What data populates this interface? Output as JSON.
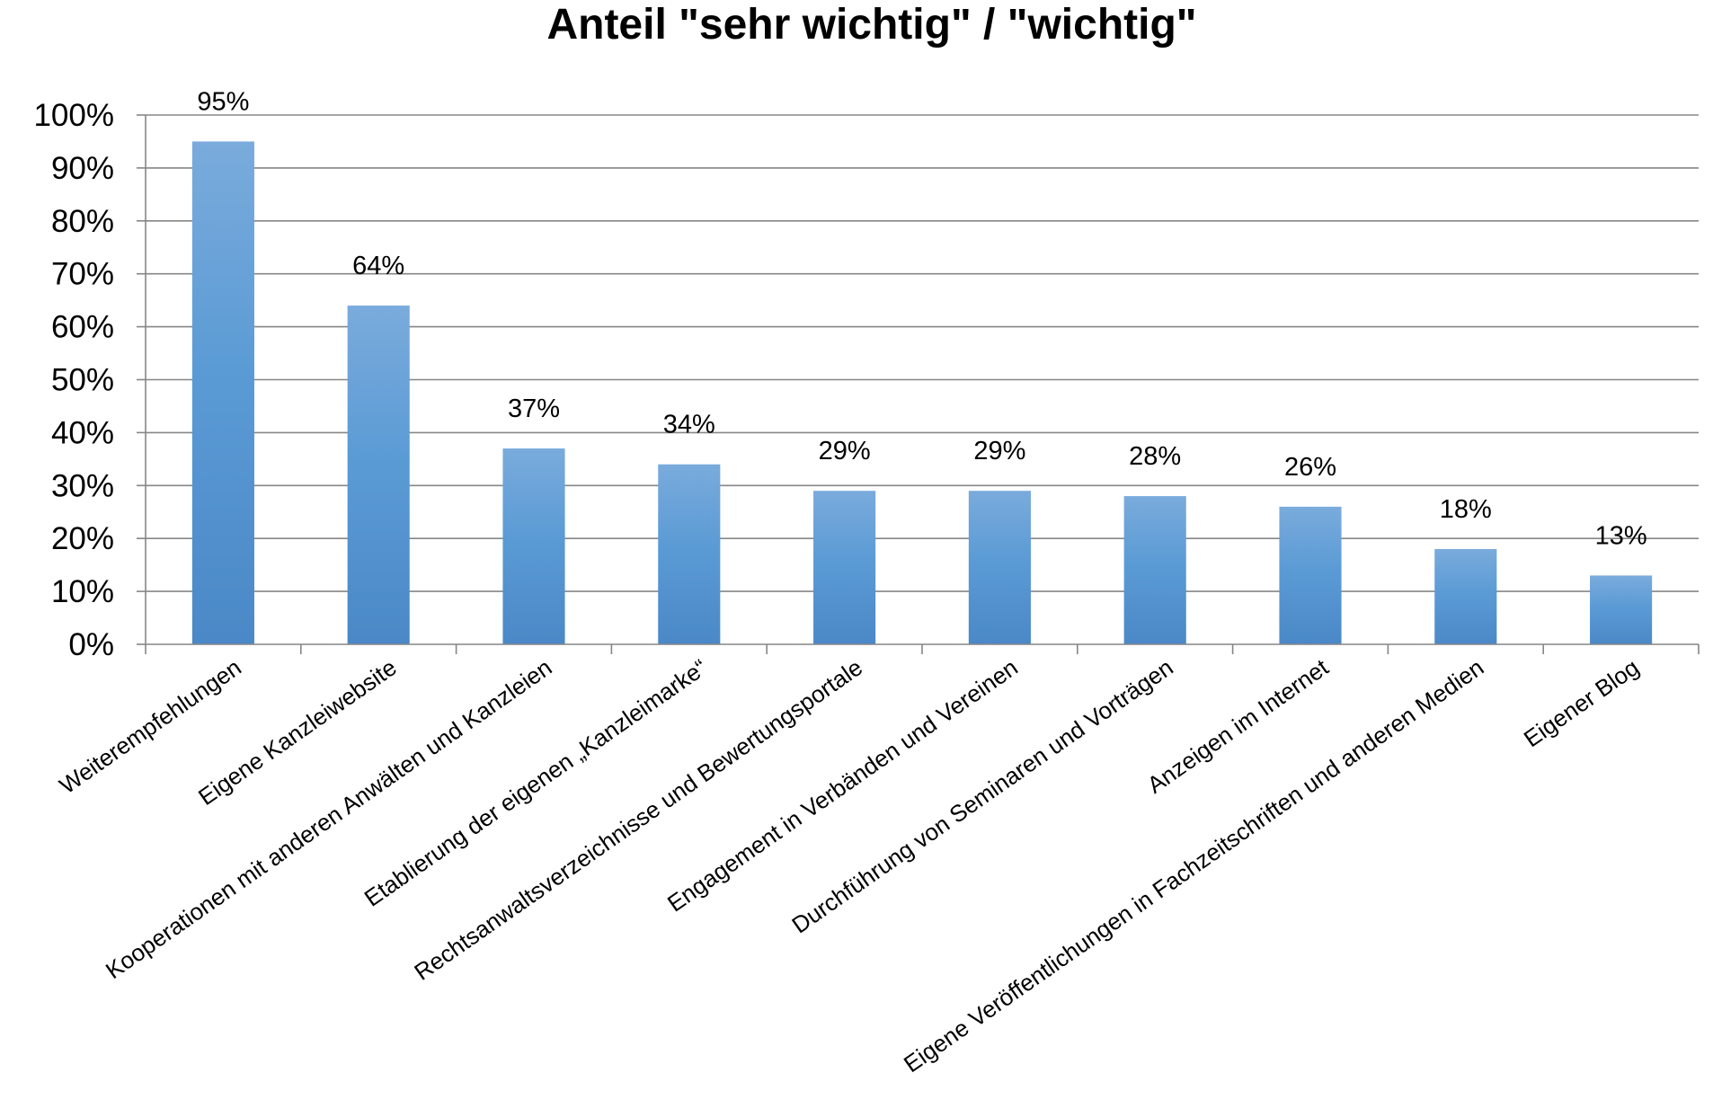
{
  "chart_data": {
    "type": "bar",
    "title": "Anteil \"sehr wichtig\" / \"wichtig\"",
    "xlabel": "",
    "ylabel": "",
    "ylim": [
      0,
      100
    ],
    "yticks": [
      0,
      10,
      20,
      30,
      40,
      50,
      60,
      70,
      80,
      90,
      100
    ],
    "ytick_labels": [
      "0%",
      "10%",
      "20%",
      "30%",
      "40%",
      "50%",
      "60%",
      "70%",
      "80%",
      "90%",
      "100%"
    ],
    "grid": true,
    "legend": "none",
    "categories": [
      "Weiterempfehlungen",
      "Eigene Kanzleiwebsite",
      "Kooperationen mit anderen Anwälten und Kanzleien",
      "Etablierung der eigenen „Kanzleimarke“",
      "Rechtsanwaltsverzeichnisse und Bewertungsportale",
      "Engagement in Verbänden und Vereinen",
      "Durchführung von Seminaren und Vorträgen",
      "Anzeigen im Internet",
      "Eigene Veröffentlichungen in Fachzeitschriften und anderen Medien",
      "Eigener Blog"
    ],
    "values": [
      95,
      64,
      37,
      34,
      29,
      29,
      28,
      26,
      18,
      13
    ],
    "data_labels": [
      "95%",
      "64%",
      "37%",
      "34%",
      "29%",
      "29%",
      "28%",
      "26%",
      "18%",
      "13%"
    ],
    "colors": {
      "bar_top": "#7aabdc",
      "bar_mid": "#5b9bd5",
      "bar_bottom": "#4a88c7",
      "gridline": "#868686",
      "axis": "#868686"
    }
  }
}
